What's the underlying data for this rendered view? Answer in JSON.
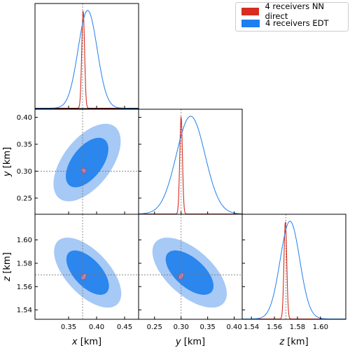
{
  "colors": {
    "nn": "#d62d20",
    "edt": "#1f7ff0",
    "edt_outer": "#a6c9f5",
    "edt_inner": "#2b86ee",
    "nn_contour": "#b583b5",
    "truth_line": "#777777"
  },
  "legend": [
    {
      "label": "4 receivers NN direct",
      "color": "#d62d20"
    },
    {
      "label": "4 receivers EDT",
      "color": "#1f7ff0"
    }
  ],
  "chart_data": {
    "type": "corner",
    "parameters": [
      {
        "symbol": "x",
        "unit": "[km]",
        "range": [
          0.29,
          0.475
        ],
        "ticks": [
          "0.35",
          "0.40",
          "0.45"
        ],
        "truth": 0.375
      },
      {
        "symbol": "y",
        "unit": "[km]",
        "range": [
          0.22,
          0.415
        ],
        "ticks": [
          "0.25",
          "0.30",
          "0.35",
          "0.40"
        ],
        "truth": 0.3
      },
      {
        "symbol": "z",
        "unit": "[km]",
        "range": [
          1.532,
          1.622
        ],
        "ticks": [
          "1.54",
          "1.56",
          "1.58",
          "1.60"
        ],
        "truth": 1.57
      }
    ],
    "series": [
      {
        "name": "4 receivers NN direct",
        "marginals": [
          {
            "mean": 0.376,
            "sd": 0.0025
          },
          {
            "mean": 0.3,
            "sd": 0.0025
          },
          {
            "mean": 1.5695,
            "sd": 0.0012
          }
        ],
        "pairs": [
          {
            "x": 0,
            "y": 1,
            "cx": 0.377,
            "cy": 0.301,
            "rx": 0.004,
            "ry": 0.005,
            "angle_deg": -45
          },
          {
            "x": 0,
            "y": 2,
            "cx": 0.377,
            "cy": 1.5685,
            "rx": 0.004,
            "ry": 0.003,
            "angle_deg": 30
          },
          {
            "x": 1,
            "y": 2,
            "cx": 0.3,
            "cy": 1.569,
            "rx": 0.004,
            "ry": 0.003,
            "angle_deg": 30
          }
        ]
      },
      {
        "name": "4 receivers EDT",
        "marginals": [
          {
            "mean": 0.384,
            "sd": 0.017
          },
          {
            "mean": 0.318,
            "sd": 0.027
          },
          {
            "mean": 1.5735,
            "sd": 0.0085
          }
        ],
        "pairs": [
          {
            "x": 0,
            "y": 1,
            "cx": 0.383,
            "cy": 0.316,
            "outer": {
              "w": 0.06,
              "h": 0.072
            },
            "inner": {
              "w": 0.038,
              "h": 0.046
            },
            "corr": 0.55
          },
          {
            "x": 0,
            "y": 2,
            "cx": 0.384,
            "cy": 1.572,
            "outer": {
              "w": 0.06,
              "h": 0.03
            },
            "inner": {
              "w": 0.038,
              "h": 0.019
            },
            "corr": -0.6
          },
          {
            "x": 1,
            "y": 2,
            "cx": 0.316,
            "cy": 1.572,
            "outer": {
              "w": 0.07,
              "h": 0.03
            },
            "inner": {
              "w": 0.045,
              "h": 0.019
            },
            "corr": -0.6
          }
        ]
      }
    ]
  }
}
